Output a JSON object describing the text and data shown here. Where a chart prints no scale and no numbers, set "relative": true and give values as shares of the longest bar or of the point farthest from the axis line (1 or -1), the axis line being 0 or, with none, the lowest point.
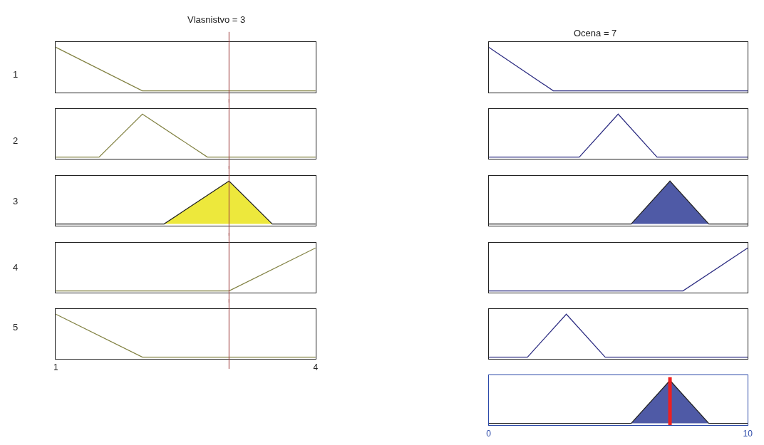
{
  "chart_data": [
    {
      "type": "line",
      "title": "Vlasnistvo = 3",
      "ylabel": "1",
      "relative": true,
      "xlim": [
        1,
        4
      ],
      "tick_labels": false,
      "series": [
        {
          "color": "#808040",
          "x": [
            1,
            2,
            4
          ],
          "values": [
            1,
            0,
            0
          ]
        }
      ],
      "ref_lines": [
        {
          "axis": "x",
          "value": 3,
          "color": "#a04040"
        }
      ]
    },
    {
      "type": "line",
      "ylabel": "2",
      "relative": true,
      "xlim": [
        1,
        4
      ],
      "tick_labels": false,
      "series": [
        {
          "color": "#808040",
          "x": [
            1,
            1.5,
            2,
            2.75,
            4
          ],
          "values": [
            0,
            0,
            1,
            0,
            0
          ]
        }
      ],
      "ref_lines": [
        {
          "axis": "x",
          "value": 3,
          "color": "#a04040"
        }
      ]
    },
    {
      "type": "area",
      "ylabel": "3",
      "relative": true,
      "xlim": [
        1,
        4
      ],
      "tick_labels": false,
      "series": [
        {
          "color": "#ede83c",
          "x": [
            1,
            2.25,
            3,
            3.5,
            4
          ],
          "values": [
            0,
            0,
            1,
            0,
            0
          ]
        }
      ],
      "ref_lines": [
        {
          "axis": "x",
          "value": 3,
          "color": "#a04040"
        }
      ]
    },
    {
      "type": "line",
      "ylabel": "4",
      "relative": true,
      "xlim": [
        1,
        4
      ],
      "tick_labels": false,
      "series": [
        {
          "color": "#808040",
          "x": [
            1,
            3,
            4
          ],
          "values": [
            0,
            0,
            1
          ]
        }
      ],
      "ref_lines": [
        {
          "axis": "x",
          "value": 3,
          "color": "#a04040"
        }
      ]
    },
    {
      "type": "line",
      "ylabel": "5",
      "relative": true,
      "xlim": [
        1,
        4
      ],
      "xticks": [
        1,
        4
      ],
      "tick_labels": "x",
      "series": [
        {
          "color": "#808040",
          "x": [
            1,
            2,
            4
          ],
          "values": [
            1,
            0,
            0
          ]
        }
      ],
      "ref_lines": [
        {
          "axis": "x",
          "value": 3,
          "color": "#a04040"
        }
      ]
    },
    {
      "type": "line",
      "title": "Ocena = 7",
      "relative": true,
      "xlim": [
        0,
        10
      ],
      "tick_labels": false,
      "series": [
        {
          "color": "#2a2a80",
          "x": [
            0,
            2.5,
            10
          ],
          "values": [
            1,
            0,
            0
          ]
        }
      ]
    },
    {
      "type": "line",
      "relative": true,
      "xlim": [
        0,
        10
      ],
      "tick_labels": false,
      "series": [
        {
          "color": "#2a2a80",
          "x": [
            0,
            3.5,
            5,
            6.5,
            10
          ],
          "values": [
            0,
            0,
            1,
            0,
            0
          ]
        }
      ]
    },
    {
      "type": "area",
      "relative": true,
      "xlim": [
        0,
        10
      ],
      "tick_labels": false,
      "series": [
        {
          "color": "#4f5aa6",
          "x": [
            0,
            5.5,
            7,
            8.5,
            10
          ],
          "values": [
            0,
            0,
            1,
            0,
            0
          ]
        }
      ]
    },
    {
      "type": "line",
      "relative": true,
      "xlim": [
        0,
        10
      ],
      "tick_labels": false,
      "series": [
        {
          "color": "#2a2a80",
          "x": [
            0,
            7.5,
            10
          ],
          "values": [
            0,
            0,
            1
          ]
        }
      ]
    },
    {
      "type": "line",
      "relative": true,
      "xlim": [
        0,
        10
      ],
      "tick_labels": false,
      "series": [
        {
          "color": "#2a2a80",
          "x": [
            0,
            1.5,
            3,
            4.5,
            10
          ],
          "values": [
            0,
            0,
            1,
            0,
            0
          ]
        }
      ]
    },
    {
      "type": "area",
      "relative": true,
      "xlim": [
        0,
        10
      ],
      "xticks": [
        0,
        10
      ],
      "tick_labels": "x",
      "series": [
        {
          "color": "#4f5aa6",
          "x": [
            0,
            5.5,
            7,
            8.5,
            10
          ],
          "values": [
            0,
            0,
            1,
            0,
            0
          ]
        }
      ],
      "ref_lines": [
        {
          "axis": "x",
          "value": 7,
          "color": "#ee2020"
        }
      ]
    }
  ]
}
